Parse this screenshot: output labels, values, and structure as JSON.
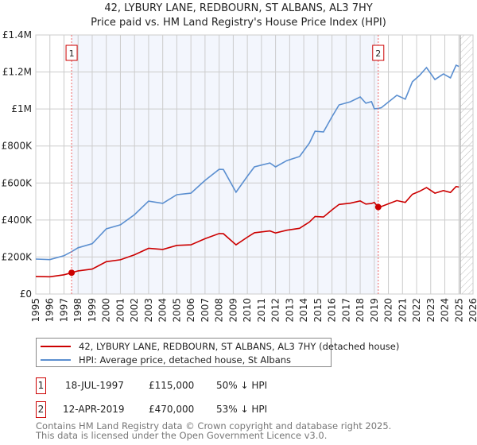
{
  "title": "42, LYBURY LANE, REDBOURN, ST ALBANS, AL3 7HY",
  "subtitle": "Price paid vs. HM Land Registry's House Price Index (HPI)",
  "chart_data": {
    "type": "line",
    "xlim": [
      1995,
      2026
    ],
    "ylim": [
      0,
      1400000
    ],
    "x_ticks": [
      1995,
      1996,
      1997,
      1998,
      1999,
      2000,
      2001,
      2002,
      2003,
      2004,
      2005,
      2006,
      2007,
      2008,
      2009,
      2010,
      2011,
      2012,
      2013,
      2014,
      2015,
      2016,
      2017,
      2018,
      2019,
      2020,
      2021,
      2022,
      2023,
      2024,
      2025,
      2026
    ],
    "y_ticks": [
      {
        "v": 0,
        "label": "£0"
      },
      {
        "v": 200000,
        "label": "£200K"
      },
      {
        "v": 400000,
        "label": "£400K"
      },
      {
        "v": 600000,
        "label": "£600K"
      },
      {
        "v": 800000,
        "label": "£800K"
      },
      {
        "v": 1000000,
        "label": "£1M"
      },
      {
        "v": 1200000,
        "label": "£1.2M"
      },
      {
        "v": 1400000,
        "label": "£1.4M"
      }
    ],
    "grid": true,
    "shaded_period": [
      1997.54,
      2019.28
    ],
    "forecast_hatch_from": 2025.1,
    "series": [
      {
        "name": "42, LYBURY LANE, REDBOURN, ST ALBANS, AL3 7HY (detached house)",
        "color": "#cc0000",
        "x": [
          1995,
          1996,
          1997,
          1997.54,
          1998,
          1999,
          2000,
          2001,
          2002,
          2003,
          2004,
          2005,
          2006,
          2007,
          2008,
          2008.3,
          2009.2,
          2010,
          2010.5,
          2011.6,
          2012,
          2012.8,
          2013.7,
          2014.4,
          2014.8,
          2015.4,
          2016,
          2016.5,
          2017.3,
          2018,
          2018.4,
          2018.8,
          2019.0,
          2019.28,
          2019.5,
          2020.6,
          2021.2,
          2021.7,
          2022.2,
          2022.7,
          2023.3,
          2023.9,
          2024.4,
          2024.8,
          2025
        ],
        "y": [
          95000,
          93000,
          104000,
          115000,
          125000,
          135000,
          175000,
          185000,
          212000,
          247000,
          241000,
          263000,
          266000,
          299000,
          327000,
          326000,
          266000,
          307000,
          331000,
          341000,
          330000,
          345000,
          355000,
          389000,
          419000,
          416000,
          455000,
          484000,
          491000,
          503000,
          486000,
          489000,
          495000,
          470000,
          473000,
          505000,
          495000,
          539000,
          555000,
          575000,
          545000,
          559000,
          549000,
          581000,
          578000
        ]
      },
      {
        "name": "HPI: Average price, detached house, St Albans",
        "color": "#5b8fd0",
        "x": [
          1995,
          1996,
          1997,
          1997.54,
          1998,
          1999,
          2000,
          2001,
          2002,
          2003,
          2004,
          2005,
          2006,
          2007,
          2008,
          2008.3,
          2009.2,
          2010,
          2010.5,
          2011.6,
          2012,
          2012.8,
          2013.7,
          2014.4,
          2014.8,
          2015.4,
          2016,
          2016.5,
          2017.3,
          2018,
          2018.4,
          2018.8,
          2019.0,
          2019.28,
          2019.5,
          2020.6,
          2021.2,
          2021.7,
          2022.2,
          2022.7,
          2023.3,
          2023.9,
          2024.4,
          2024.8,
          2025
        ],
        "y": [
          189000,
          186000,
          207000,
          229000,
          250000,
          272000,
          352000,
          374000,
          429000,
          502000,
          490000,
          537000,
          545000,
          614000,
          674000,
          673000,
          550000,
          636000,
          687000,
          708000,
          687000,
          721000,
          743000,
          816000,
          880000,
          876000,
          958000,
          1022000,
          1039000,
          1065000,
          1031000,
          1040000,
          1001000,
          1003000,
          1007000,
          1074000,
          1053000,
          1147000,
          1181000,
          1224000,
          1159000,
          1189000,
          1168000,
          1237000,
          1230000
        ]
      }
    ],
    "sales": [
      {
        "label": "1",
        "x": 1997.54,
        "y": 115000
      },
      {
        "label": "2",
        "x": 2019.28,
        "y": 470000
      }
    ]
  },
  "legend": {
    "price_paid": "42, LYBURY LANE, REDBOURN, ST ALBANS, AL3 7HY (detached house)",
    "hpi": "HPI: Average price, detached house, St Albans"
  },
  "transactions": [
    {
      "num": "1",
      "date": "18-JUL-1997",
      "price": "£115,000",
      "hpi": "50% ↓ HPI"
    },
    {
      "num": "2",
      "date": "12-APR-2019",
      "price": "£470,000",
      "hpi": "53% ↓ HPI"
    }
  ],
  "footer": {
    "line1": "Contains HM Land Registry data © Crown copyright and database right 2025.",
    "line2": "This data is licensed under the Open Government Licence v3.0."
  }
}
